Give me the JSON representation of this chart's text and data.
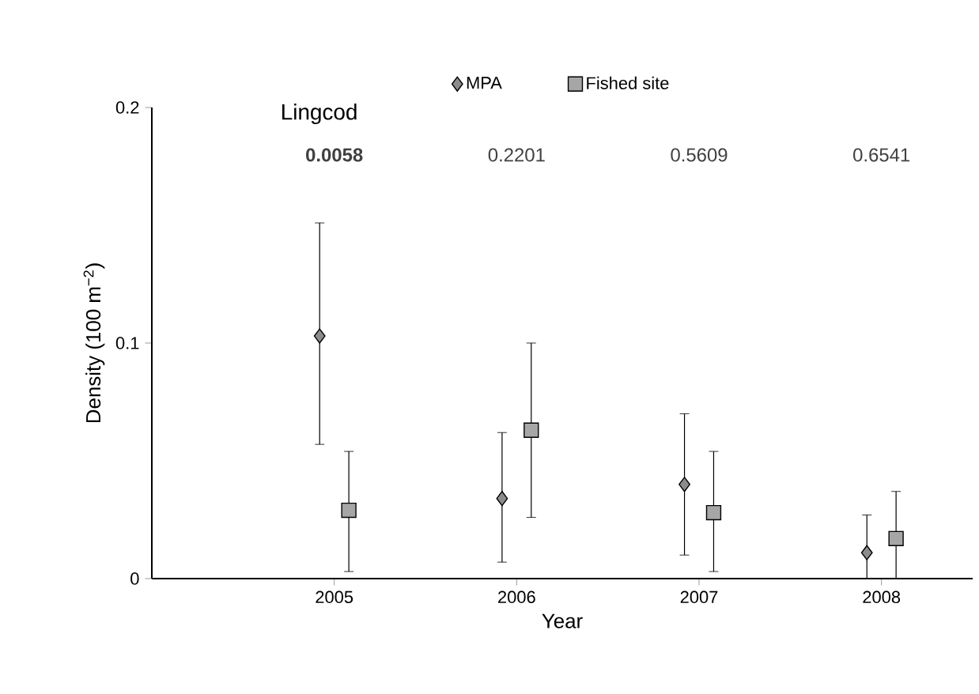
{
  "chart_data": {
    "type": "scatter",
    "title": "Lingcod",
    "xlabel": "Year",
    "ylabel": "Density (100 m$^{−2}$)",
    "categories": [
      "2005",
      "2006",
      "2007",
      "2008"
    ],
    "ylim": [
      0,
      0.2
    ],
    "yticks": [
      0,
      0.1,
      0.2
    ],
    "legend": "top",
    "annotations": [
      "**0.0058**",
      "0.2201",
      "0.5609",
      "0.6541"
    ],
    "series": [
      {
        "name": "MPA",
        "color": "#8c8c8c",
        "marker": "diamond",
        "values": [
          0.103,
          0.034,
          0.04,
          0.011
        ],
        "errors": [
          [
            0.057,
            0.151
          ],
          [
            0.007,
            0.062
          ],
          [
            0.01,
            0.07
          ],
          [
            0,
            0.027
          ]
        ]
      },
      {
        "name": "Fished site",
        "color": "#a6a6a6",
        "marker": "square",
        "values": [
          0.029,
          0.063,
          0.028,
          0.017
        ],
        "errors": [
          [
            0.003,
            0.054
          ],
          [
            0.026,
            0.1
          ],
          [
            0.003,
            0.054
          ],
          [
            0,
            0.037
          ]
        ]
      }
    ]
  }
}
